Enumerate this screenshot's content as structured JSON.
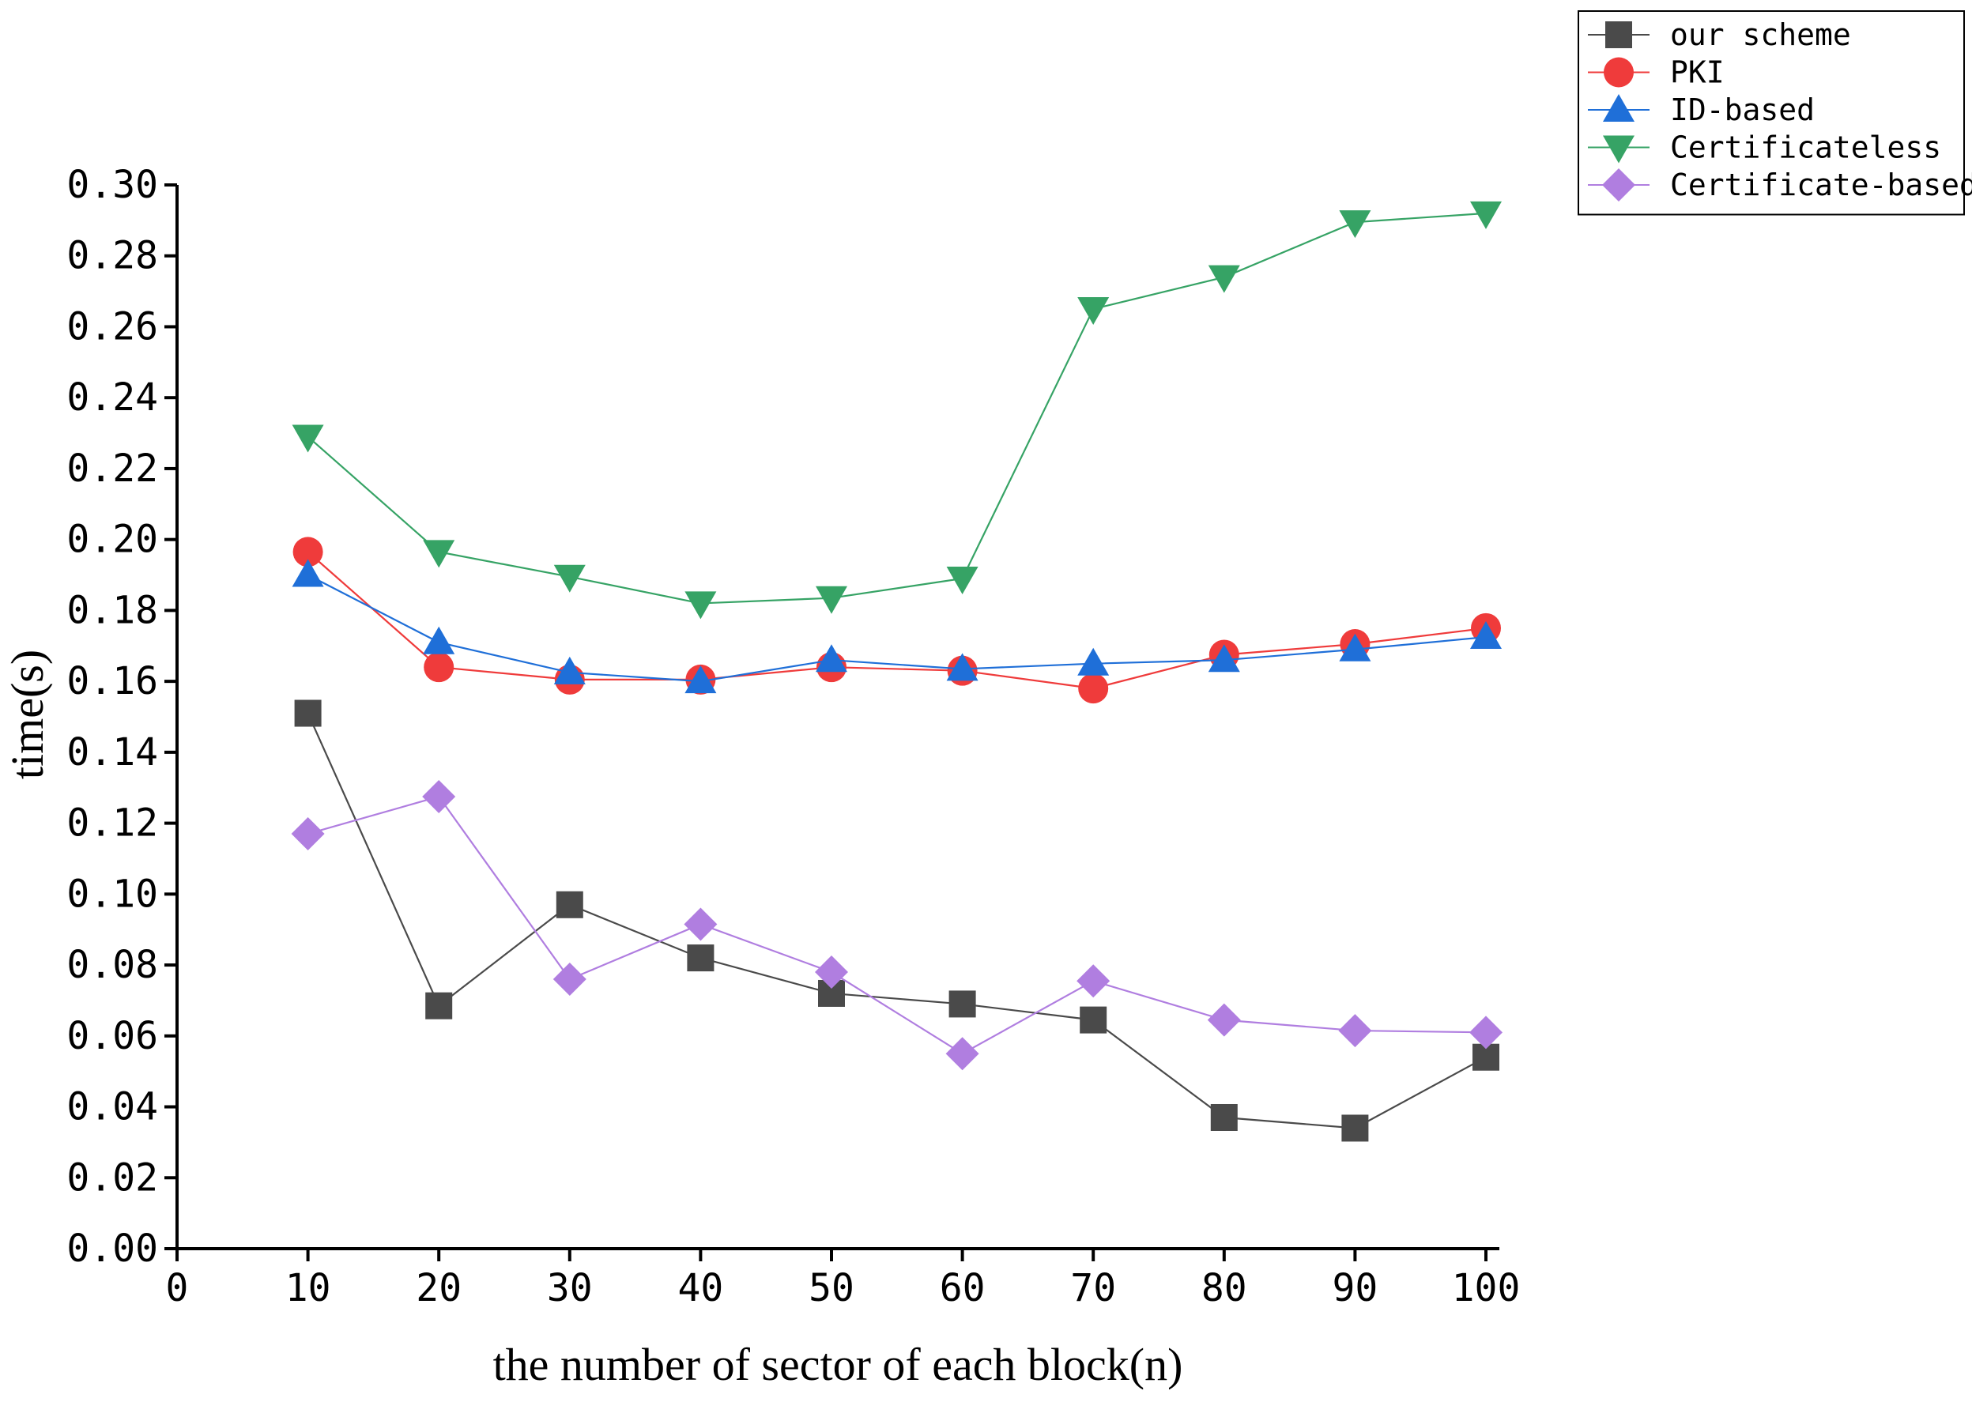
{
  "chart_data": {
    "type": "line",
    "title": "",
    "xlabel": "the number of sector of each block(n)",
    "ylabel": "time(s)",
    "xlim": [
      0,
      100
    ],
    "ylim": [
      0,
      0.3
    ],
    "xticks": [
      "0",
      "10",
      "20",
      "30",
      "40",
      "50",
      "60",
      "70",
      "80",
      "90",
      "100"
    ],
    "yticks": [
      "0.00",
      "0.02",
      "0.04",
      "0.06",
      "0.08",
      "0.10",
      "0.12",
      "0.14",
      "0.16",
      "0.18",
      "0.20",
      "0.22",
      "0.24",
      "0.26",
      "0.28",
      "0.30"
    ],
    "x": [
      10,
      20,
      30,
      40,
      50,
      60,
      70,
      80,
      90,
      100
    ],
    "legend_position": "top-right",
    "series": [
      {
        "name": "our scheme",
        "color": "#4a4a4a",
        "marker": "square",
        "values": [
          0.151,
          0.0685,
          0.097,
          0.082,
          0.072,
          0.069,
          0.0645,
          0.037,
          0.034,
          0.054
        ]
      },
      {
        "name": "PKI",
        "color": "#ef3b3b",
        "marker": "circle",
        "values": [
          0.1965,
          0.164,
          0.1605,
          0.1605,
          0.164,
          0.163,
          0.158,
          0.1675,
          0.1705,
          0.175
        ]
      },
      {
        "name": "ID-based",
        "color": "#1f6fd8",
        "marker": "triangle-up",
        "values": [
          0.19,
          0.171,
          0.1625,
          0.16,
          0.166,
          0.1635,
          0.165,
          0.166,
          0.169,
          0.1725
        ]
      },
      {
        "name": "Certificateless",
        "color": "#36a365",
        "marker": "triangle-down",
        "values": [
          0.229,
          0.1965,
          0.1895,
          0.182,
          0.1835,
          0.189,
          0.265,
          0.274,
          0.2895,
          0.292
        ]
      },
      {
        "name": "Certificate-based",
        "color": "#b07ee0",
        "marker": "diamond",
        "values": [
          0.117,
          0.1275,
          0.076,
          0.0915,
          0.078,
          0.055,
          0.0755,
          0.0645,
          0.0615,
          0.061
        ]
      }
    ]
  }
}
